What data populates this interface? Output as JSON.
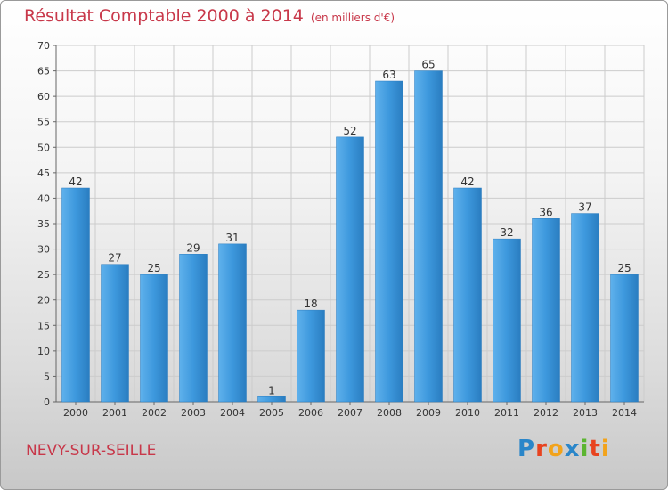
{
  "title": "Résultat Comptable 2000 à 2014",
  "unit": "(en milliers d'€)",
  "city": "NEVY-SUR-SEILLE",
  "logo": {
    "letters": [
      "P",
      "r",
      "o",
      "x",
      "i",
      "t",
      "i"
    ],
    "colors": [
      "#2a86c9",
      "#e8431f",
      "#f2a31b",
      "#2a86c9",
      "#5cb531",
      "#e8431f",
      "#f2a31b"
    ]
  },
  "colors": {
    "bar": "#3d98dd",
    "bar_light": "#5fb1ec",
    "bar_dark": "#2a7dc0",
    "grid": "#cccccc",
    "text": "#c8384a"
  },
  "chart_data": {
    "type": "bar",
    "categories": [
      "2000",
      "2001",
      "2002",
      "2003",
      "2004",
      "2005",
      "2006",
      "2007",
      "2008",
      "2009",
      "2010",
      "2011",
      "2012",
      "2013",
      "2014"
    ],
    "values": [
      42,
      27,
      25,
      29,
      31,
      1,
      18,
      52,
      63,
      65,
      42,
      32,
      36,
      37,
      25
    ],
    "title": "Résultat Comptable 2000 à 2014",
    "xlabel": "",
    "ylabel": "",
    "ylim": [
      0,
      70
    ],
    "yticks": [
      0,
      5,
      10,
      15,
      20,
      25,
      30,
      35,
      40,
      45,
      50,
      55,
      60,
      65,
      70
    ],
    "grid": true,
    "data_labels": true
  }
}
